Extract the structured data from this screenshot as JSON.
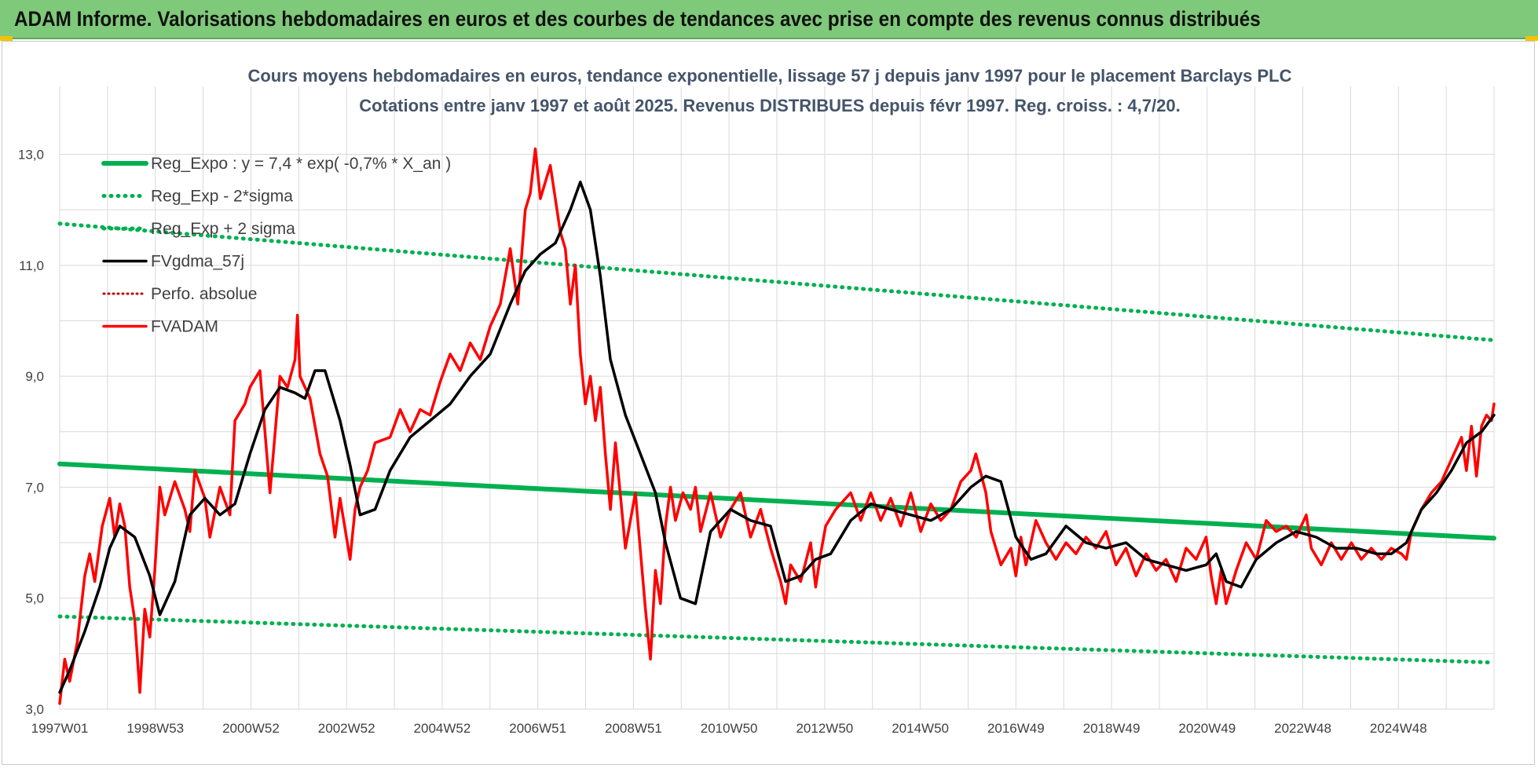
{
  "banner": {
    "title": "ADAM Informe. Valorisations hebdomadaires en euros et des courbes de tendances avec prise en compte des revenus connus distribués"
  },
  "colors": {
    "banner": "#7fc97a",
    "reg_expo": "#00b050",
    "fvgdma": "#000000",
    "fvadam": "#ff0000",
    "perfo": "#c00000",
    "grid": "#d9d9d9"
  },
  "chart_data": {
    "type": "line",
    "title": [
      "Cours moyens hebdomadaires en euros, tendance exponentielle, lissage 57 j depuis janv 1997 pour le placement Barclays PLC",
      "Cotations entre janv 1997 et août 2025.  Revenus DISTRIBUES depuis févr 1997.  Reg. croiss. : 4,7/20."
    ],
    "xlabel": "",
    "ylabel": "",
    "x_tick_labels": [
      "1997W01",
      "1998W53",
      "2000W52",
      "2002W52",
      "2004W52",
      "2006W51",
      "2008W51",
      "2010W50",
      "2012W50",
      "2014W50",
      "2016W49",
      "2018W49",
      "2020W49",
      "2022W48",
      "2024W48"
    ],
    "x_range": [
      1997.0,
      2025.65
    ],
    "ylim": [
      3.0,
      13.8
    ],
    "y_ticks": [
      3.0,
      5.0,
      7.0,
      9.0,
      11.0,
      13.0
    ],
    "y_tick_labels": [
      "3,0",
      "5,0",
      "7,0",
      "9,0",
      "11,0",
      "13,0"
    ],
    "grid": true,
    "legend_position": "top-left",
    "series": [
      {
        "name": "Reg_Expo : y = 7,4 * exp( -0,7% *  X_an )",
        "style": "solid",
        "x": [
          1997.0,
          2025.65
        ],
        "y": [
          7.42,
          6.08
        ]
      },
      {
        "name": "Reg_Exp - 2*sigma",
        "style": "dotted",
        "x": [
          1997.0,
          2025.65
        ],
        "y": [
          4.67,
          3.84
        ]
      },
      {
        "name": "Reg_Exp + 2 sigma",
        "style": "dotted",
        "x": [
          1997.0,
          2025.65
        ],
        "y": [
          11.75,
          9.65
        ]
      },
      {
        "name": "FVgdma_57j",
        "style": "solid",
        "x": [
          1997.0,
          1997.2,
          1997.5,
          1997.8,
          1998.0,
          1998.2,
          1998.5,
          1998.8,
          1999.0,
          1999.3,
          1999.6,
          1999.9,
          2000.2,
          2000.5,
          2000.8,
          2001.1,
          2001.4,
          2001.7,
          2001.9,
          2002.1,
          2002.3,
          2002.6,
          2002.8,
          2003.0,
          2003.3,
          2003.6,
          2004.0,
          2004.4,
          2004.8,
          2005.2,
          2005.6,
          2006.0,
          2006.3,
          2006.6,
          2006.9,
          2007.2,
          2007.4,
          2007.6,
          2007.8,
          2008.0,
          2008.3,
          2008.6,
          2008.9,
          2009.1,
          2009.4,
          2009.7,
          2010.0,
          2010.4,
          2010.8,
          2011.2,
          2011.5,
          2011.8,
          2012.1,
          2012.4,
          2012.8,
          2013.2,
          2013.6,
          2014.0,
          2014.4,
          2014.8,
          2015.2,
          2015.5,
          2015.8,
          2016.1,
          2016.4,
          2016.7,
          2017.1,
          2017.5,
          2017.9,
          2018.3,
          2018.7,
          2019.1,
          2019.5,
          2019.9,
          2020.1,
          2020.3,
          2020.6,
          2020.9,
          2021.3,
          2021.7,
          2022.1,
          2022.5,
          2022.9,
          2023.3,
          2023.6,
          2023.9,
          2024.2,
          2024.5,
          2024.8,
          2025.1,
          2025.4,
          2025.65
        ],
        "y": [
          3.3,
          3.7,
          4.4,
          5.2,
          5.9,
          6.3,
          6.1,
          5.4,
          4.7,
          5.3,
          6.5,
          6.8,
          6.5,
          6.7,
          7.6,
          8.4,
          8.8,
          8.7,
          8.6,
          9.1,
          9.1,
          8.2,
          7.4,
          6.5,
          6.6,
          7.3,
          7.9,
          8.2,
          8.5,
          9.0,
          9.4,
          10.3,
          10.9,
          11.2,
          11.4,
          12.0,
          12.5,
          12.0,
          10.8,
          9.3,
          8.3,
          7.6,
          6.9,
          6.0,
          5.0,
          4.9,
          6.2,
          6.6,
          6.4,
          6.3,
          5.3,
          5.4,
          5.7,
          5.8,
          6.4,
          6.7,
          6.6,
          6.5,
          6.4,
          6.6,
          7.0,
          7.2,
          7.1,
          6.1,
          5.7,
          5.8,
          6.3,
          6.0,
          5.9,
          6.0,
          5.7,
          5.6,
          5.5,
          5.6,
          5.8,
          5.3,
          5.2,
          5.7,
          6.0,
          6.2,
          6.1,
          5.9,
          5.9,
          5.8,
          5.8,
          6.0,
          6.6,
          6.9,
          7.3,
          7.8,
          8.0,
          8.3
        ]
      },
      {
        "name": "Perfo. absolue",
        "style": "dotted",
        "x": [],
        "y": []
      },
      {
        "name": "FVADAM",
        "style": "solid",
        "x": [
          1997.0,
          1997.1,
          1997.2,
          1997.35,
          1997.5,
          1997.6,
          1997.7,
          1997.85,
          1998.0,
          1998.1,
          1998.2,
          1998.3,
          1998.4,
          1998.5,
          1998.6,
          1998.7,
          1998.8,
          1998.9,
          1999.0,
          1999.1,
          1999.3,
          1999.5,
          1999.6,
          1999.7,
          1999.9,
          2000.0,
          2000.2,
          2000.4,
          2000.5,
          2000.7,
          2000.8,
          2001.0,
          2001.2,
          2001.4,
          2001.55,
          2001.7,
          2001.75,
          2001.8,
          2002.0,
          2002.2,
          2002.35,
          2002.5,
          2002.6,
          2002.8,
          2002.9,
          2003.0,
          2003.15,
          2003.3,
          2003.6,
          2003.8,
          2004.0,
          2004.2,
          2004.4,
          2004.6,
          2004.8,
          2005.0,
          2005.2,
          2005.4,
          2005.6,
          2005.8,
          2006.0,
          2006.15,
          2006.3,
          2006.4,
          2006.5,
          2006.6,
          2006.8,
          2007.0,
          2007.1,
          2007.2,
          2007.3,
          2007.4,
          2007.5,
          2007.6,
          2007.7,
          2007.8,
          2007.9,
          2008.0,
          2008.1,
          2008.3,
          2008.5,
          2008.7,
          2008.8,
          2008.9,
          2009.0,
          2009.1,
          2009.2,
          2009.3,
          2009.45,
          2009.6,
          2009.7,
          2009.8,
          2010.0,
          2010.2,
          2010.4,
          2010.6,
          2010.8,
          2011.0,
          2011.2,
          2011.4,
          2011.5,
          2011.6,
          2011.8,
          2012.0,
          2012.1,
          2012.2,
          2012.3,
          2012.5,
          2012.8,
          2013.0,
          2013.2,
          2013.4,
          2013.6,
          2013.8,
          2014.0,
          2014.2,
          2014.4,
          2014.6,
          2014.8,
          2015.0,
          2015.2,
          2015.3,
          2015.5,
          2015.6,
          2015.8,
          2016.0,
          2016.1,
          2016.2,
          2016.3,
          2016.5,
          2016.7,
          2016.9,
          2017.1,
          2017.3,
          2017.5,
          2017.7,
          2017.9,
          2018.1,
          2018.3,
          2018.5,
          2018.7,
          2018.9,
          2019.1,
          2019.3,
          2019.5,
          2019.7,
          2019.9,
          2020.0,
          2020.1,
          2020.2,
          2020.3,
          2020.5,
          2020.7,
          2020.9,
          2021.1,
          2021.3,
          2021.5,
          2021.7,
          2021.9,
          2022.0,
          2022.2,
          2022.4,
          2022.6,
          2022.8,
          2023.0,
          2023.2,
          2023.4,
          2023.6,
          2023.8,
          2023.9,
          2024.0,
          2024.2,
          2024.4,
          2024.6,
          2024.8,
          2025.0,
          2025.1,
          2025.2,
          2025.3,
          2025.4,
          2025.5,
          2025.6,
          2025.65
        ],
        "y": [
          3.1,
          3.9,
          3.5,
          4.2,
          5.4,
          5.8,
          5.3,
          6.3,
          6.8,
          6.1,
          6.7,
          6.3,
          5.2,
          4.6,
          3.3,
          4.8,
          4.3,
          5.5,
          7.0,
          6.5,
          7.1,
          6.6,
          6.2,
          7.3,
          6.8,
          6.1,
          7.0,
          6.5,
          8.2,
          8.5,
          8.8,
          9.1,
          6.9,
          9.0,
          8.8,
          9.3,
          10.1,
          9.0,
          8.6,
          7.6,
          7.2,
          6.1,
          6.8,
          5.7,
          6.6,
          7.0,
          7.3,
          7.8,
          7.9,
          8.4,
          8.0,
          8.4,
          8.3,
          8.9,
          9.4,
          9.1,
          9.6,
          9.3,
          9.9,
          10.3,
          11.3,
          10.3,
          12.0,
          12.3,
          13.1,
          12.2,
          12.8,
          11.6,
          11.3,
          10.3,
          11.0,
          9.4,
          8.5,
          9.0,
          8.2,
          8.8,
          7.6,
          6.6,
          7.8,
          5.9,
          6.9,
          4.8,
          3.9,
          5.5,
          4.9,
          6.3,
          7.0,
          6.4,
          6.9,
          6.6,
          7.0,
          6.2,
          6.9,
          6.1,
          6.6,
          6.9,
          6.1,
          6.6,
          5.9,
          5.3,
          4.9,
          5.6,
          5.3,
          6.0,
          5.2,
          5.8,
          6.3,
          6.6,
          6.9,
          6.4,
          6.9,
          6.4,
          6.8,
          6.3,
          6.9,
          6.2,
          6.7,
          6.4,
          6.6,
          7.1,
          7.3,
          7.6,
          6.9,
          6.2,
          5.6,
          5.9,
          5.4,
          6.1,
          5.6,
          6.4,
          6.0,
          5.7,
          6.0,
          5.8,
          6.1,
          5.9,
          6.2,
          5.6,
          5.9,
          5.4,
          5.8,
          5.5,
          5.7,
          5.3,
          5.9,
          5.7,
          6.1,
          5.4,
          4.9,
          5.5,
          4.9,
          5.5,
          6.0,
          5.7,
          6.4,
          6.2,
          6.3,
          6.1,
          6.5,
          5.9,
          5.6,
          6.0,
          5.7,
          6.0,
          5.7,
          5.9,
          5.7,
          5.9,
          5.8,
          5.7,
          6.2,
          6.6,
          6.9,
          7.1,
          7.5,
          7.9,
          7.3,
          8.1,
          7.2,
          8.1,
          8.3,
          8.2,
          8.5
        ]
      }
    ]
  }
}
